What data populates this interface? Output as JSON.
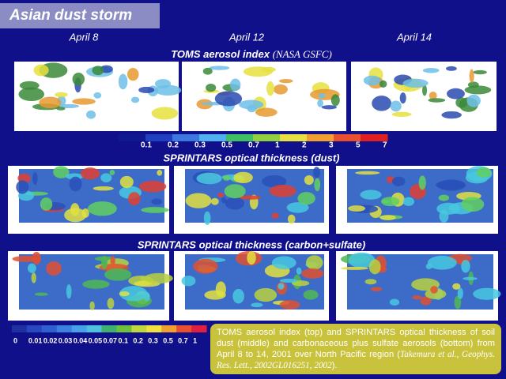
{
  "title": "Asian dust storm",
  "dates": [
    "April 8",
    "April 12",
    "April 14"
  ],
  "sections": [
    {
      "heading": "TOMS aerosol index",
      "source": "(NASA GSFC)"
    },
    {
      "heading": "SPRINTARS optical thickness (dust)"
    },
    {
      "heading": "SPRINTARS optical thickness (carbon+sulfate)"
    }
  ],
  "colorbars": [
    {
      "labels": [
        0.1,
        0.2,
        0.3,
        0.5,
        0.7,
        1,
        2,
        3,
        5,
        7
      ]
    },
    {
      "labels": [
        0,
        0.01,
        0.02,
        0.03,
        0.04,
        0.05,
        0.07,
        0.1,
        0.2,
        0.3,
        0.5,
        0.7,
        1
      ]
    }
  ],
  "caption": {
    "text": "TOMS aerosol index (top) and SPRINTARS optical thickness of soil dust (middle) and carbonaceous plus sulfate aerosols (bottom) from April 8 to 14, 2001 over North Pacific region (",
    "citation": "Takemura et al., Geophys. Res. Lett., 2002GL016251, 2002",
    "end": ")."
  }
}
